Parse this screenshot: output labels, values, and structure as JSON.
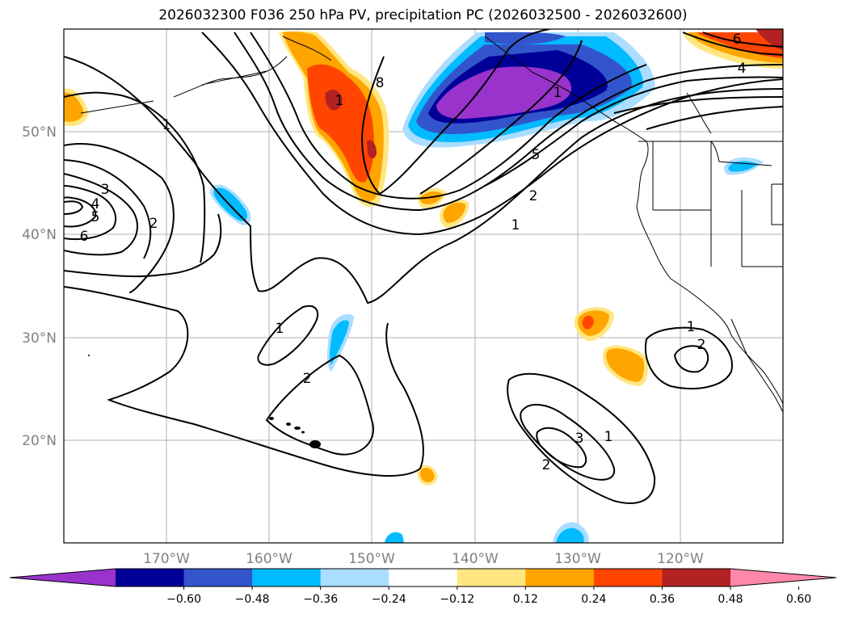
{
  "title": "2026032300 F036 250 hPa PV, precipitation PC (2026032500 - 2026032600)",
  "lat_ticks": [
    "20°N",
    "30°N",
    "40°N",
    "50°N"
  ],
  "lon_ticks": [
    "170°W",
    "160°W",
    "150°W",
    "140°W",
    "130°W",
    "120°W"
  ],
  "colorbar": {
    "ticks": [
      "−0.60",
      "−0.48",
      "−0.36",
      "−0.24",
      "−0.12",
      "0.12",
      "0.24",
      "0.36",
      "0.48",
      "0.60"
    ],
    "colors": [
      "#9933cc",
      "#000099",
      "#3355cc",
      "#00bbff",
      "#aaddff",
      "#ffffff",
      "#ffe680",
      "#ffa500",
      "#ff4500",
      "#b22222",
      "#ff88aa"
    ]
  },
  "contour_labels": [
    "1",
    "1",
    "2",
    "3",
    "4",
    "5",
    "6",
    "8",
    "1",
    "2",
    "5",
    "1",
    "1",
    "2",
    "1",
    "2",
    "1",
    "3",
    "2",
    "6",
    "4"
  ]
}
